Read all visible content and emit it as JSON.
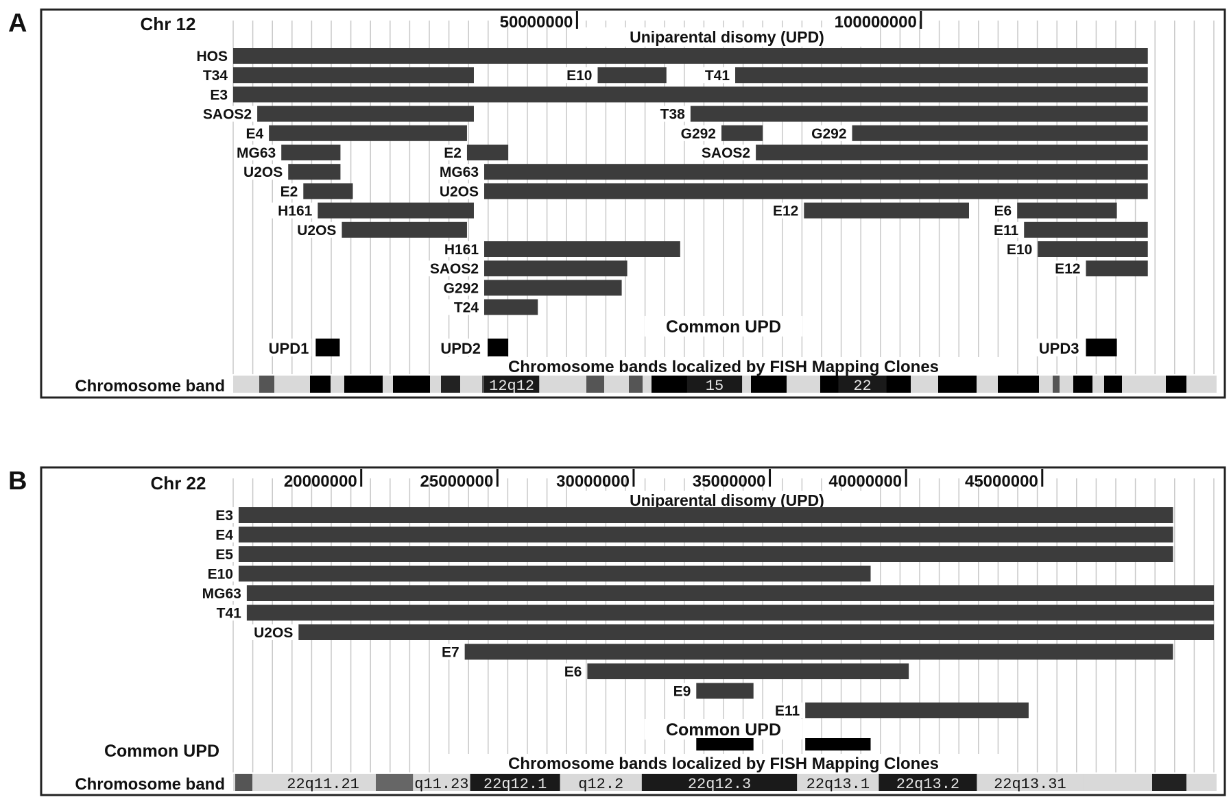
{
  "colors": {
    "segment": "#3c3c3c",
    "common_upd": "#000000",
    "gridline": "#c8c8c8",
    "frame": "#222222"
  },
  "panels": [
    {
      "letter": "A",
      "chromosome": "Chr 12",
      "upd_title": "Uniparental disomy (UPD)",
      "common_upd_title": "Common UPD",
      "fish_title": "Chromosome bands localized by FISH Mapping Clones",
      "band_row_label": "Chromosome band",
      "axis": {
        "ticks": [
          {
            "label": "50000000",
            "value": 50000000
          },
          {
            "label": "100000000",
            "value": 100000000
          }
        ]
      },
      "segments": [
        {
          "label": "HOS",
          "start": 0,
          "end": 133000000
        },
        {
          "label": "T34",
          "start": 0,
          "end": 35000000
        },
        {
          "label": "E10",
          "start": 53000000,
          "end": 63000000
        },
        {
          "label": "T41",
          "start": 73000000,
          "end": 133000000
        },
        {
          "label": "E3",
          "start": 0,
          "end": 133000000
        },
        {
          "label": "SAOS2",
          "start": 3500000,
          "end": 35000000
        },
        {
          "label": "T38",
          "start": 66500000,
          "end": 133000000
        },
        {
          "label": "E4",
          "start": 5200000,
          "end": 34000000
        },
        {
          "label": "G292",
          "start": 71000000,
          "end": 77000000
        },
        {
          "label": "G292",
          "start": 90000000,
          "end": 133000000
        },
        {
          "label": "MG63",
          "start": 7000000,
          "end": 15600000
        },
        {
          "label": "E2",
          "start": 34000000,
          "end": 40000000
        },
        {
          "label": "SAOS2",
          "start": 76000000,
          "end": 133000000
        },
        {
          "label": "U2OS",
          "start": 8000000,
          "end": 15600000
        },
        {
          "label": "MG63",
          "start": 36500000,
          "end": 133000000
        },
        {
          "label": "E2",
          "start": 10200000,
          "end": 17400000
        },
        {
          "label": "U2OS",
          "start": 36500000,
          "end": 133000000
        },
        {
          "label": "H161",
          "start": 12300000,
          "end": 35000000
        },
        {
          "label": "E12",
          "start": 83000000,
          "end": 107000000
        },
        {
          "label": "E6",
          "start": 114000000,
          "end": 128500000
        },
        {
          "label": "U2OS",
          "start": 15800000,
          "end": 34000000
        },
        {
          "label": "E11",
          "start": 115000000,
          "end": 133000000
        },
        {
          "label": "H161",
          "start": 36500000,
          "end": 65000000
        },
        {
          "label": "E10",
          "start": 117000000,
          "end": 133000000
        },
        {
          "label": "SAOS2",
          "start": 36500000,
          "end": 57300000
        },
        {
          "label": "E12",
          "start": 124000000,
          "end": 133000000
        },
        {
          "label": "G292",
          "start": 36500000,
          "end": 56500000
        },
        {
          "label": "T24",
          "start": 36500000,
          "end": 44300000
        }
      ],
      "common_upd": [
        {
          "label": "UPD1",
          "start": 12000000,
          "end": 15500000
        },
        {
          "label": "UPD2",
          "start": 37000000,
          "end": 40000000
        },
        {
          "label": "UPD3",
          "start": 124000000,
          "end": 128500000
        }
      ],
      "bands": [
        {
          "label": "12q12",
          "start": 36500000,
          "end": 44500000
        },
        {
          "label": "15",
          "start": 66000000,
          "end": 74000000
        },
        {
          "label": "22",
          "start": 88000000,
          "end": 95000000
        }
      ]
    },
    {
      "letter": "B",
      "chromosome": "Chr 22",
      "upd_title": "Uniparental disomy (UPD)",
      "common_upd_title": "Common UPD",
      "common_upd_side_label": "Common UPD",
      "fish_title": "Chromosome bands localized by FISH Mapping Clones",
      "band_row_label": "Chromosome band",
      "axis": {
        "ticks": [
          {
            "label": "20000000",
            "value": 20000000
          },
          {
            "label": "25000000",
            "value": 25000000
          },
          {
            "label": "30000000",
            "value": 30000000
          },
          {
            "label": "35000000",
            "value": 35000000
          },
          {
            "label": "40000000",
            "value": 40000000
          },
          {
            "label": "45000000",
            "value": 45000000
          }
        ]
      },
      "segments": [
        {
          "label": "E3",
          "start": 15500000,
          "end": 49800000
        },
        {
          "label": "E4",
          "start": 15500000,
          "end": 49800000
        },
        {
          "label": "E5",
          "start": 15500000,
          "end": 49800000
        },
        {
          "label": "E10",
          "start": 15500000,
          "end": 38700000
        },
        {
          "label": "MG63",
          "start": 15800000,
          "end": 51300000
        },
        {
          "label": "T41",
          "start": 15800000,
          "end": 51300000
        },
        {
          "label": "U2OS",
          "start": 17700000,
          "end": 51300000
        },
        {
          "label": "E7",
          "start": 23800000,
          "end": 49800000
        },
        {
          "label": "E6",
          "start": 28300000,
          "end": 40100000
        },
        {
          "label": "E9",
          "start": 32300000,
          "end": 34400000
        },
        {
          "label": "E11",
          "start": 36300000,
          "end": 44500000
        }
      ],
      "common_upd": [
        {
          "label": "",
          "start": 32300000,
          "end": 34400000
        },
        {
          "label": "",
          "start": 36300000,
          "end": 38700000
        }
      ],
      "bands": [
        {
          "label": "22q11.21",
          "start": 16800000,
          "end": 20400000
        },
        {
          "label": "q11.23",
          "start": 21900000,
          "end": 24000000
        },
        {
          "label": "22q12.1",
          "start": 24000000,
          "end": 27300000
        },
        {
          "label": "q12.2",
          "start": 27300000,
          "end": 30300000
        },
        {
          "label": "22q12.3",
          "start": 30300000,
          "end": 36000000
        },
        {
          "label": "22q13.1",
          "start": 36000000,
          "end": 39000000
        },
        {
          "label": "22q13.2",
          "start": 39000000,
          "end": 42600000
        },
        {
          "label": "22q13.31",
          "start": 42600000,
          "end": 46500000
        }
      ]
    }
  ]
}
